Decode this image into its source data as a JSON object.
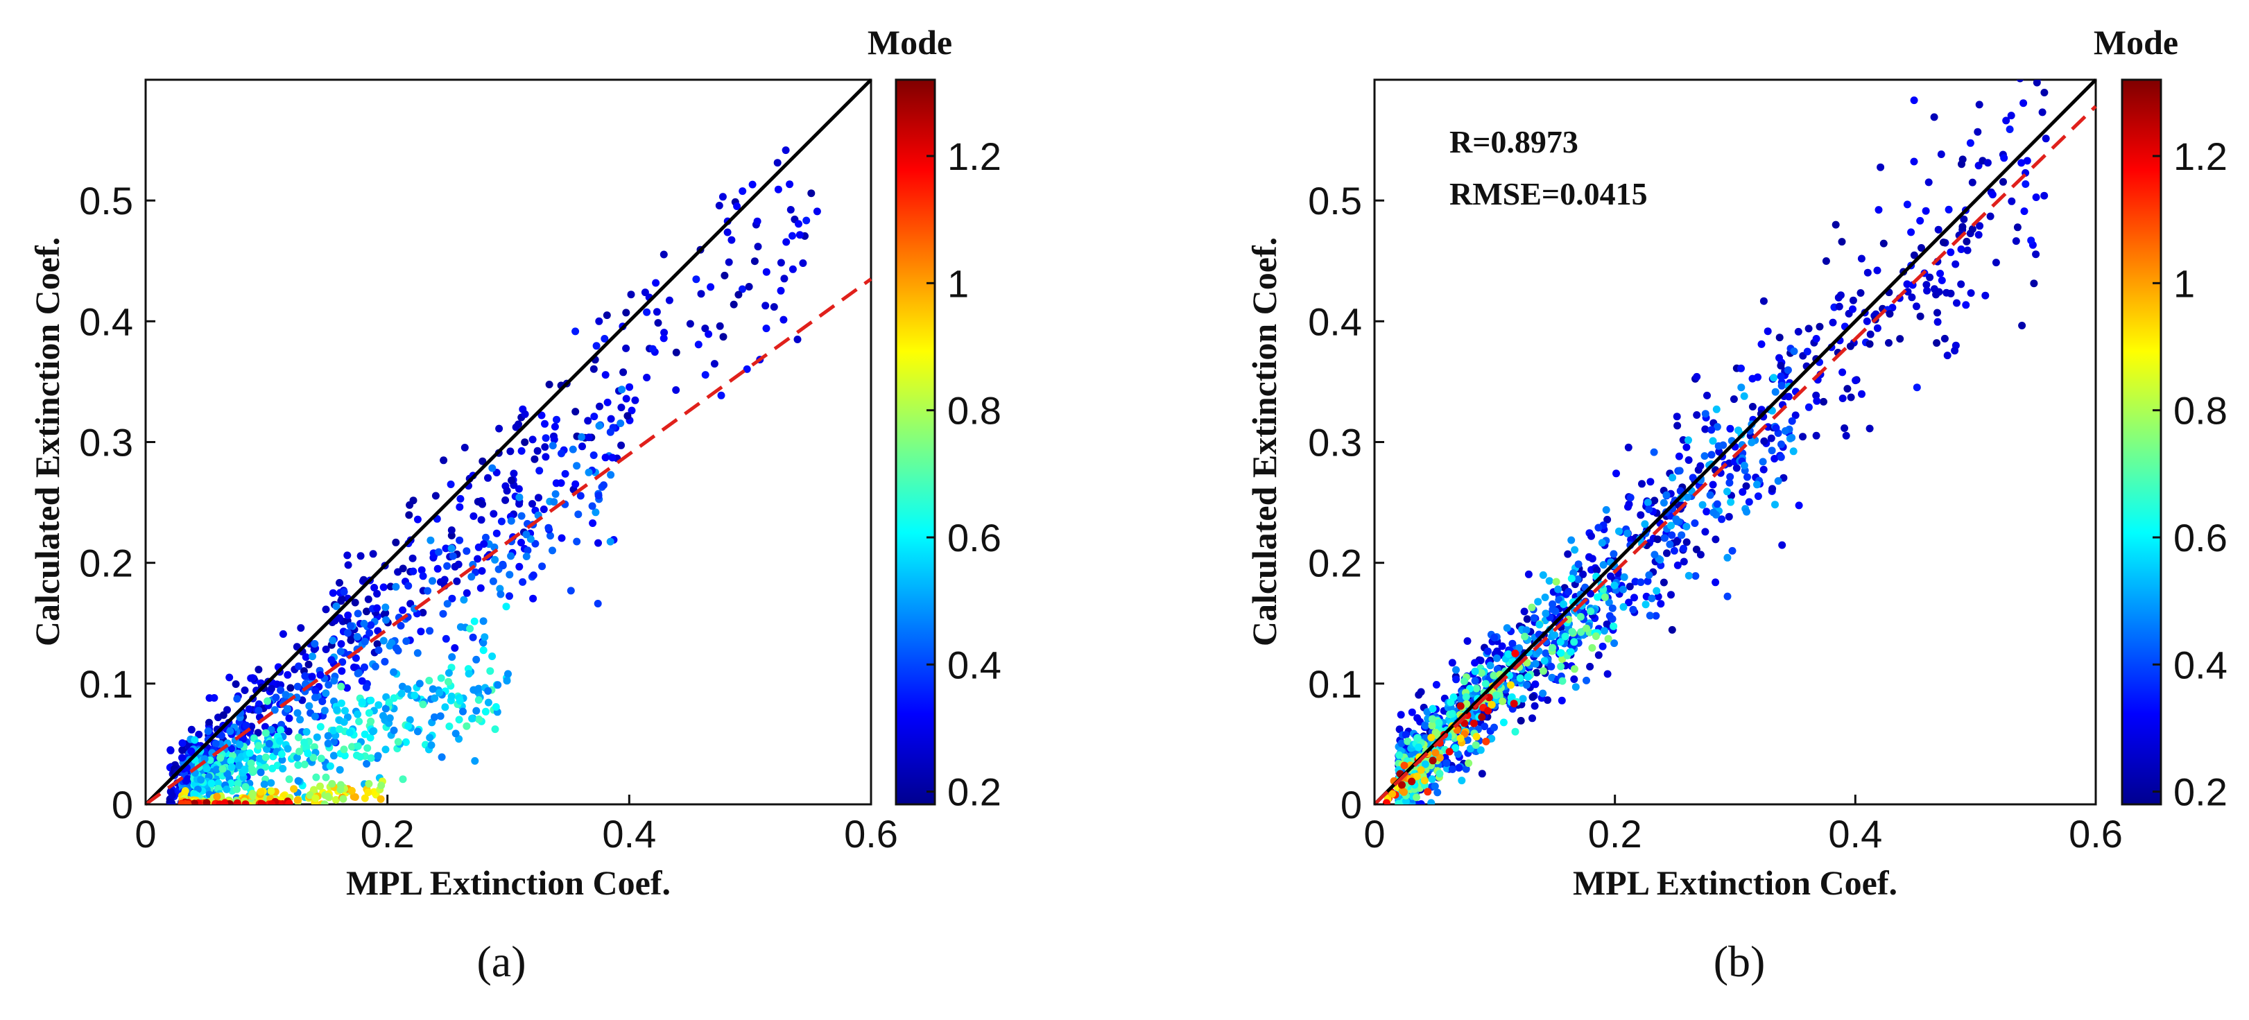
{
  "colorbar_stops": [
    "#00008f",
    "#0000ff",
    "#0080ff",
    "#00ffff",
    "#80ff80",
    "#ffff00",
    "#ff8000",
    "#ff0000",
    "#800000"
  ],
  "chart_data": [
    {
      "type": "scatter",
      "panel_label": "(a)",
      "xlabel": "MPL Extinction Coef.",
      "ylabel": "Calculated Extinction Coef.",
      "xlim": [
        0,
        0.6
      ],
      "ylim": [
        0,
        0.6
      ],
      "xticks": [
        0,
        0.2,
        0.4,
        0.6
      ],
      "xtick_labels": [
        "0",
        "0.2",
        "0.4",
        "0.6"
      ],
      "yticks": [
        0,
        0.1,
        0.2,
        0.3,
        0.4,
        0.5
      ],
      "ytick_labels": [
        "0",
        "0.1",
        "0.2",
        "0.3",
        "0.4",
        "0.5"
      ],
      "colorbar": {
        "title": "Mode",
        "range": [
          0.18,
          1.32
        ],
        "ticks": [
          0.2,
          0.4,
          0.6,
          0.8,
          1,
          1.2
        ],
        "tick_labels": [
          "0.2",
          "0.4",
          "0.6",
          "0.8",
          "1",
          "1.2"
        ]
      },
      "one_to_one_line": {
        "x": [
          0,
          0.6
        ],
        "y": [
          0,
          0.6
        ],
        "color": "#000000",
        "style": "solid"
      },
      "fit_line": {
        "x": [
          0,
          0.6
        ],
        "y": [
          0,
          0.435
        ],
        "color": "#e0201b",
        "style": "dashed"
      },
      "annotations": [],
      "clusters": [
        {
          "description": "blue points along upper ridge",
          "slope": 0.9,
          "x_range": [
            0.02,
            0.56
          ],
          "spread": 0.03,
          "mode": [
            0.2,
            0.35
          ],
          "count": 420
        },
        {
          "description": "mid-blue points around fit line",
          "slope": 0.7,
          "x_range": [
            0.03,
            0.4
          ],
          "spread": 0.03,
          "mode": [
            0.3,
            0.5
          ],
          "count": 380
        },
        {
          "description": "cyan points below fit line",
          "slope": 0.35,
          "x_range": [
            0.04,
            0.3
          ],
          "spread": 0.025,
          "mode": [
            0.45,
            0.7
          ],
          "count": 420
        },
        {
          "description": "green/yellow near zero",
          "slope": 0.05,
          "x_range": [
            0.03,
            0.2
          ],
          "spread": 0.006,
          "mode": [
            0.75,
            1.0
          ],
          "count": 160
        },
        {
          "description": "red points on x axis",
          "slope": 0.0,
          "x_range": [
            0.03,
            0.12
          ],
          "spread": 0.002,
          "mode": [
            1.1,
            1.3
          ],
          "count": 50
        }
      ]
    },
    {
      "type": "scatter",
      "panel_label": "(b)",
      "xlabel": "MPL Extinction Coef.",
      "ylabel": "Calculated Extinction Coef.",
      "xlim": [
        0,
        0.6
      ],
      "ylim": [
        0,
        0.6
      ],
      "xticks": [
        0,
        0.2,
        0.4,
        0.6
      ],
      "xtick_labels": [
        "0",
        "0.2",
        "0.4",
        "0.6"
      ],
      "yticks": [
        0,
        0.1,
        0.2,
        0.3,
        0.4,
        0.5
      ],
      "ytick_labels": [
        "0",
        "0.1",
        "0.2",
        "0.3",
        "0.4",
        "0.5"
      ],
      "colorbar": {
        "title": "Mode",
        "range": [
          0.18,
          1.32
        ],
        "ticks": [
          0.2,
          0.4,
          0.6,
          0.8,
          1,
          1.2
        ],
        "tick_labels": [
          "0.2",
          "0.4",
          "0.6",
          "0.8",
          "1",
          "1.2"
        ]
      },
      "one_to_one_line": {
        "x": [
          0,
          0.6
        ],
        "y": [
          0,
          0.6
        ],
        "color": "#000000",
        "style": "solid"
      },
      "fit_line": {
        "x": [
          0,
          0.6
        ],
        "y": [
          0,
          0.578
        ],
        "color": "#e0201b",
        "style": "dashed"
      },
      "annotations": [
        "R=0.8973",
        "RMSE=0.0415"
      ],
      "clusters": [
        {
          "description": "dark blue points spread around 1:1 line",
          "slope": 0.97,
          "x_range": [
            0.02,
            0.56
          ],
          "spread": 0.04,
          "mode": [
            0.2,
            0.35
          ],
          "count": 700
        },
        {
          "description": "mid-blue points",
          "slope": 0.95,
          "x_range": [
            0.02,
            0.35
          ],
          "spread": 0.035,
          "mode": [
            0.35,
            0.55
          ],
          "count": 500
        },
        {
          "description": "cyan/green points at low values",
          "slope": 0.9,
          "x_range": [
            0.02,
            0.2
          ],
          "spread": 0.03,
          "mode": [
            0.55,
            0.8
          ],
          "count": 220
        },
        {
          "description": "yellow/red points near origin",
          "slope": 0.85,
          "x_range": [
            0.01,
            0.12
          ],
          "spread": 0.02,
          "mode": [
            0.9,
            1.3
          ],
          "count": 60
        }
      ]
    }
  ]
}
